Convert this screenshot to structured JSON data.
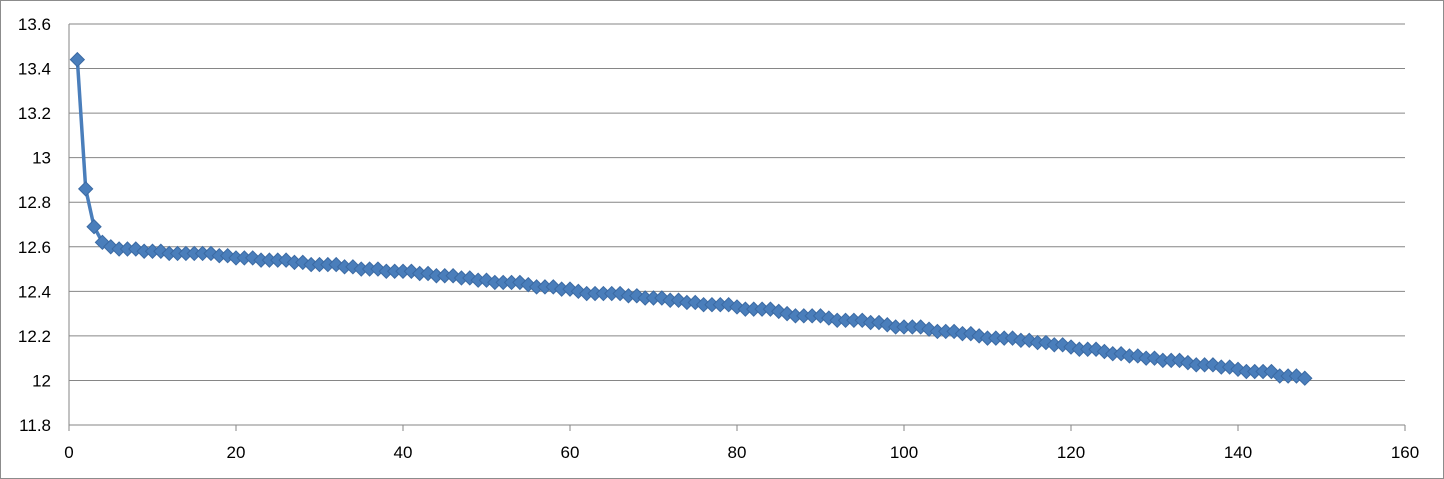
{
  "chart_data": {
    "type": "line",
    "title": "",
    "xlabel": "",
    "ylabel": "",
    "xlim": [
      0,
      160
    ],
    "ylim": [
      11.8,
      13.6
    ],
    "x_ticks": [
      "0",
      "20",
      "40",
      "60",
      "80",
      "100",
      "120",
      "140",
      "160"
    ],
    "y_ticks": [
      "11.8",
      "12",
      "12.2",
      "12.4",
      "12.6",
      "12.8",
      "13",
      "13.2",
      "13.4",
      "13.6"
    ],
    "grid": "horizontal major gridlines",
    "legend": "none",
    "marker": "diamond",
    "color": "#4a7ebb",
    "series": [
      {
        "x": [
          1,
          2,
          3,
          4,
          5,
          6,
          7,
          8,
          9,
          10,
          11,
          12,
          13,
          14,
          15,
          16,
          17,
          18,
          19,
          20,
          21,
          22,
          23,
          24,
          25,
          26,
          27,
          28,
          29,
          30,
          31,
          32,
          33,
          34,
          35,
          36,
          37,
          38,
          39,
          40,
          41,
          42,
          43,
          44,
          45,
          46,
          47,
          48,
          49,
          50,
          51,
          52,
          53,
          54,
          55,
          56,
          57,
          58,
          59,
          60,
          61,
          62,
          63,
          64,
          65,
          66,
          67,
          68,
          69,
          70,
          71,
          72,
          73,
          74,
          75,
          76,
          77,
          78,
          79,
          80,
          81,
          82,
          83,
          84,
          85,
          86,
          87,
          88,
          89,
          90,
          91,
          92,
          93,
          94,
          95,
          96,
          97,
          98,
          99,
          100,
          101,
          102,
          103,
          104,
          105,
          106,
          107,
          108,
          109,
          110,
          111,
          112,
          113,
          114,
          115,
          116,
          117,
          118,
          119,
          120,
          121,
          122,
          123,
          124,
          125,
          126,
          127,
          128,
          129,
          130,
          131,
          132,
          133,
          134,
          135,
          136,
          137,
          138,
          139,
          140,
          141,
          142,
          143,
          144,
          145,
          146,
          147,
          148
        ],
        "y": [
          13.44,
          12.86,
          12.69,
          12.62,
          12.6,
          12.59,
          12.59,
          12.59,
          12.58,
          12.58,
          12.58,
          12.57,
          12.57,
          12.57,
          12.57,
          12.57,
          12.57,
          12.56,
          12.56,
          12.55,
          12.55,
          12.55,
          12.54,
          12.54,
          12.54,
          12.54,
          12.53,
          12.53,
          12.52,
          12.52,
          12.52,
          12.52,
          12.51,
          12.51,
          12.5,
          12.5,
          12.5,
          12.49,
          12.49,
          12.49,
          12.49,
          12.48,
          12.48,
          12.47,
          12.47,
          12.47,
          12.46,
          12.46,
          12.45,
          12.45,
          12.44,
          12.44,
          12.44,
          12.44,
          12.43,
          12.42,
          12.42,
          12.42,
          12.41,
          12.41,
          12.4,
          12.39,
          12.39,
          12.39,
          12.39,
          12.39,
          12.38,
          12.38,
          12.37,
          12.37,
          12.37,
          12.36,
          12.36,
          12.35,
          12.35,
          12.34,
          12.34,
          12.34,
          12.34,
          12.33,
          12.32,
          12.32,
          12.32,
          12.32,
          12.31,
          12.3,
          12.29,
          12.29,
          12.29,
          12.29,
          12.28,
          12.27,
          12.27,
          12.27,
          12.27,
          12.26,
          12.26,
          12.25,
          12.24,
          12.24,
          12.24,
          12.24,
          12.23,
          12.22,
          12.22,
          12.22,
          12.21,
          12.21,
          12.2,
          12.19,
          12.19,
          12.19,
          12.19,
          12.18,
          12.18,
          12.17,
          12.17,
          12.16,
          12.16,
          12.15,
          12.14,
          12.14,
          12.14,
          12.13,
          12.12,
          12.12,
          12.11,
          12.11,
          12.1,
          12.1,
          12.09,
          12.09,
          12.09,
          12.08,
          12.07,
          12.07,
          12.07,
          12.06,
          12.06,
          12.05,
          12.04,
          12.04,
          12.04,
          12.04,
          12.02,
          12.02,
          12.02,
          12.01
        ]
      }
    ]
  }
}
